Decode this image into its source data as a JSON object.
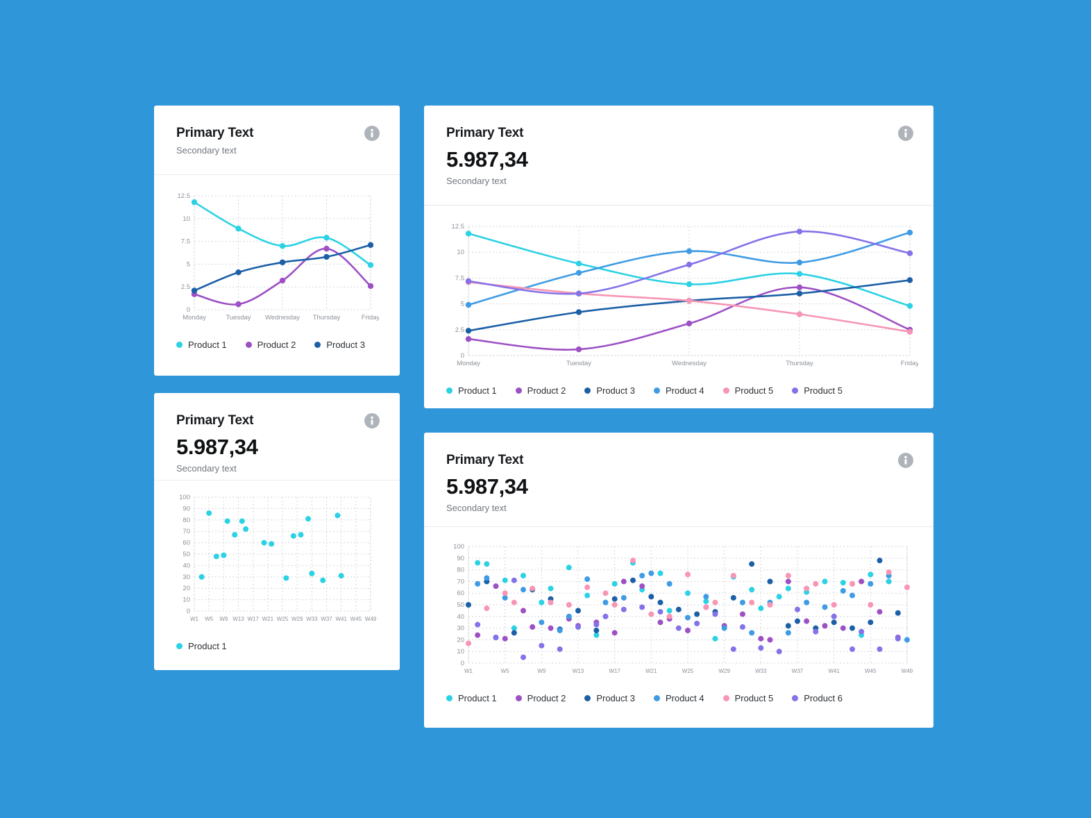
{
  "page": {
    "background": "#2E96D9"
  },
  "colors": {
    "product1": "#2BD1E4",
    "product2": "#9C50C4",
    "product3": "#1B5FA6",
    "product4": "#3E9BE4",
    "product5": "#F795B4",
    "product6": "#8372E8",
    "card_background": "#FFFFFF",
    "info_icon": "#AFB4BA"
  },
  "cards": [
    {
      "title": "Primary Text",
      "subtitle": "Secondary text"
    },
    {
      "title": "Primary Text",
      "value": "5.987,34",
      "subtitle": "Secondary text"
    },
    {
      "title": "Primary Text",
      "value": "5.987,34",
      "subtitle": "Secondary text"
    },
    {
      "title": "Primary Text",
      "value": "5.987,34",
      "subtitle": "Secondary text"
    }
  ],
  "chart_data": [
    {
      "type": "line",
      "title": "Primary Text",
      "categories": [
        "Monday",
        "Tuesday",
        "Wednesday",
        "Thursday",
        "Friday"
      ],
      "ylim": [
        0,
        12.5
      ],
      "yticks": [
        0,
        2.5,
        5,
        7.5,
        10,
        12.5
      ],
      "grid": true,
      "legend_position": "bottom",
      "series": [
        {
          "name": "Product 1",
          "color": "#2BD1E4",
          "values": [
            11.8,
            8.9,
            7.0,
            7.9,
            4.9
          ]
        },
        {
          "name": "Product 2",
          "color": "#9C50C4",
          "values": [
            1.7,
            0.6,
            3.2,
            6.7,
            2.6
          ]
        },
        {
          "name": "Product 3",
          "color": "#1B5FA6",
          "values": [
            2.1,
            4.1,
            5.2,
            5.8,
            7.1
          ]
        }
      ]
    },
    {
      "type": "line",
      "title": "Primary Text",
      "categories": [
        "Monday",
        "Tuesday",
        "Wednesday",
        "Thursday",
        "Friday"
      ],
      "ylim": [
        0,
        12.5
      ],
      "yticks": [
        0,
        2.5,
        5,
        7.5,
        10,
        12.5
      ],
      "grid": true,
      "legend_position": "bottom",
      "series": [
        {
          "name": "Product 1",
          "color": "#2BD1E4",
          "values": [
            11.8,
            8.9,
            6.9,
            7.9,
            4.8
          ]
        },
        {
          "name": "Product 2",
          "color": "#9C50C4",
          "values": [
            1.6,
            0.6,
            3.1,
            6.6,
            2.5
          ]
        },
        {
          "name": "Product 3",
          "color": "#1B5FA6",
          "values": [
            2.4,
            4.2,
            5.3,
            6.0,
            7.3
          ]
        },
        {
          "name": "Product 4",
          "color": "#3E9BE4",
          "values": [
            4.9,
            8.0,
            10.1,
            9.0,
            11.9
          ]
        },
        {
          "name": "Product 5",
          "color": "#F795B4",
          "values": [
            7.1,
            6.0,
            5.3,
            4.0,
            2.3
          ]
        },
        {
          "name": "Product 5",
          "color": "#8372E8",
          "values": [
            7.2,
            6.0,
            8.8,
            12.0,
            9.9
          ]
        }
      ]
    },
    {
      "type": "scatter",
      "title": "Primary Text",
      "xlim": [
        1,
        49
      ],
      "xticks": [
        1,
        5,
        9,
        13,
        17,
        21,
        25,
        29,
        33,
        37,
        41,
        45,
        49
      ],
      "xtick_labels": [
        "W1",
        "W5",
        "W9",
        "W13",
        "W17",
        "W21",
        "W25",
        "W29",
        "W33",
        "W37",
        "W41",
        "W45",
        "W49"
      ],
      "ylim": [
        0,
        100
      ],
      "yticks": [
        0,
        10,
        20,
        30,
        40,
        50,
        60,
        70,
        80,
        90,
        100
      ],
      "grid": true,
      "legend_position": "bottom",
      "series": [
        {
          "name": "Product 1",
          "color": "#2BD1E4",
          "points": [
            [
              3,
              30
            ],
            [
              5,
              86
            ],
            [
              7,
              48
            ],
            [
              9,
              49
            ],
            [
              10,
              79
            ],
            [
              12,
              67
            ],
            [
              14,
              79
            ],
            [
              15,
              72
            ],
            [
              20,
              60
            ],
            [
              22,
              59
            ],
            [
              26,
              29
            ],
            [
              28,
              66
            ],
            [
              30,
              67
            ],
            [
              32,
              81
            ],
            [
              33,
              33
            ],
            [
              36,
              27
            ],
            [
              40,
              84
            ],
            [
              41,
              31
            ]
          ]
        }
      ]
    },
    {
      "type": "scatter",
      "title": "Primary Text",
      "xlim": [
        1,
        49
      ],
      "xticks": [
        1,
        5,
        9,
        13,
        17,
        21,
        25,
        29,
        33,
        37,
        41,
        45,
        49
      ],
      "xtick_labels": [
        "W1",
        "W5",
        "W9",
        "W13",
        "W17",
        "W21",
        "W25",
        "W29",
        "W33",
        "W37",
        "W41",
        "W45",
        "W49"
      ],
      "ylim": [
        0,
        100
      ],
      "yticks": [
        0,
        10,
        20,
        30,
        40,
        50,
        60,
        70,
        80,
        90,
        100
      ],
      "grid": true,
      "legend_position": "bottom",
      "series": [
        {
          "name": "Product 1",
          "color": "#2BD1E4",
          "points": [
            [
              2,
              86
            ],
            [
              3,
              85
            ],
            [
              5,
              71
            ],
            [
              6,
              30
            ],
            [
              7,
              75
            ],
            [
              9,
              52
            ],
            [
              10,
              64
            ],
            [
              12,
              82
            ],
            [
              14,
              58
            ],
            [
              15,
              24
            ],
            [
              17,
              68
            ],
            [
              19,
              86
            ],
            [
              20,
              63
            ],
            [
              22,
              77
            ],
            [
              23,
              45
            ],
            [
              25,
              60
            ],
            [
              27,
              53
            ],
            [
              28,
              21
            ],
            [
              30,
              74
            ],
            [
              32,
              63
            ],
            [
              33,
              47
            ],
            [
              35,
              57
            ],
            [
              36,
              64
            ],
            [
              38,
              61
            ],
            [
              40,
              70
            ],
            [
              42,
              69
            ],
            [
              44,
              24
            ],
            [
              45,
              76
            ],
            [
              47,
              70
            ],
            [
              48,
              22
            ]
          ]
        },
        {
          "name": "Product 2",
          "color": "#9C50C4",
          "points": [
            [
              2,
              24
            ],
            [
              4,
              66
            ],
            [
              5,
              21
            ],
            [
              7,
              45
            ],
            [
              8,
              31
            ],
            [
              10,
              30
            ],
            [
              12,
              38
            ],
            [
              13,
              32
            ],
            [
              15,
              35
            ],
            [
              17,
              26
            ],
            [
              18,
              70
            ],
            [
              20,
              66
            ],
            [
              22,
              35
            ],
            [
              23,
              38
            ],
            [
              25,
              28
            ],
            [
              27,
              48
            ],
            [
              29,
              32
            ],
            [
              31,
              42
            ],
            [
              33,
              21
            ],
            [
              34,
              20
            ],
            [
              36,
              70
            ],
            [
              38,
              36
            ],
            [
              40,
              32
            ],
            [
              42,
              30
            ],
            [
              44,
              70
            ],
            [
              46,
              44
            ],
            [
              48,
              22
            ]
          ]
        },
        {
          "name": "Product 3",
          "color": "#1B5FA6",
          "points": [
            [
              1,
              50
            ],
            [
              3,
              70
            ],
            [
              4,
              22
            ],
            [
              6,
              26
            ],
            [
              8,
              63
            ],
            [
              10,
              55
            ],
            [
              11,
              29
            ],
            [
              13,
              45
            ],
            [
              15,
              28
            ],
            [
              17,
              55
            ],
            [
              19,
              71
            ],
            [
              21,
              57
            ],
            [
              22,
              52
            ],
            [
              24,
              46
            ],
            [
              26,
              42
            ],
            [
              28,
              44
            ],
            [
              30,
              56
            ],
            [
              32,
              85
            ],
            [
              34,
              70
            ],
            [
              36,
              32
            ],
            [
              37,
              36
            ],
            [
              39,
              30
            ],
            [
              41,
              35
            ],
            [
              43,
              30
            ],
            [
              45,
              35
            ],
            [
              46,
              88
            ],
            [
              48,
              43
            ]
          ]
        },
        {
          "name": "Product 4",
          "color": "#3E9BE4",
          "points": [
            [
              2,
              68
            ],
            [
              3,
              73
            ],
            [
              5,
              56
            ],
            [
              7,
              63
            ],
            [
              9,
              35
            ],
            [
              11,
              28
            ],
            [
              12,
              40
            ],
            [
              14,
              72
            ],
            [
              16,
              52
            ],
            [
              18,
              56
            ],
            [
              20,
              75
            ],
            [
              21,
              77
            ],
            [
              23,
              68
            ],
            [
              25,
              39
            ],
            [
              27,
              57
            ],
            [
              29,
              30
            ],
            [
              31,
              52
            ],
            [
              32,
              26
            ],
            [
              34,
              52
            ],
            [
              36,
              26
            ],
            [
              38,
              52
            ],
            [
              40,
              48
            ],
            [
              42,
              62
            ],
            [
              43,
              58
            ],
            [
              45,
              68
            ],
            [
              47,
              75
            ],
            [
              49,
              20
            ]
          ]
        },
        {
          "name": "Product 5",
          "color": "#F795B4",
          "points": [
            [
              1,
              17
            ],
            [
              3,
              47
            ],
            [
              5,
              60
            ],
            [
              6,
              52
            ],
            [
              8,
              64
            ],
            [
              10,
              52
            ],
            [
              12,
              50
            ],
            [
              14,
              65
            ],
            [
              16,
              60
            ],
            [
              17,
              50
            ],
            [
              19,
              88
            ],
            [
              21,
              42
            ],
            [
              23,
              40
            ],
            [
              25,
              76
            ],
            [
              27,
              48
            ],
            [
              28,
              52
            ],
            [
              30,
              75
            ],
            [
              32,
              52
            ],
            [
              34,
              50
            ],
            [
              36,
              75
            ],
            [
              38,
              64
            ],
            [
              39,
              68
            ],
            [
              41,
              50
            ],
            [
              43,
              68
            ],
            [
              45,
              50
            ],
            [
              47,
              78
            ],
            [
              49,
              65
            ]
          ]
        },
        {
          "name": "Product 6",
          "color": "#8372E8",
          "points": [
            [
              2,
              33
            ],
            [
              4,
              22
            ],
            [
              6,
              71
            ],
            [
              7,
              5
            ],
            [
              9,
              15
            ],
            [
              11,
              12
            ],
            [
              13,
              31
            ],
            [
              15,
              33
            ],
            [
              16,
              40
            ],
            [
              18,
              46
            ],
            [
              20,
              48
            ],
            [
              22,
              44
            ],
            [
              24,
              30
            ],
            [
              26,
              34
            ],
            [
              28,
              42
            ],
            [
              30,
              12
            ],
            [
              31,
              31
            ],
            [
              33,
              13
            ],
            [
              35,
              10
            ],
            [
              37,
              46
            ],
            [
              39,
              27
            ],
            [
              41,
              40
            ],
            [
              43,
              12
            ],
            [
              44,
              27
            ],
            [
              46,
              12
            ],
            [
              48,
              21
            ]
          ]
        }
      ]
    }
  ]
}
